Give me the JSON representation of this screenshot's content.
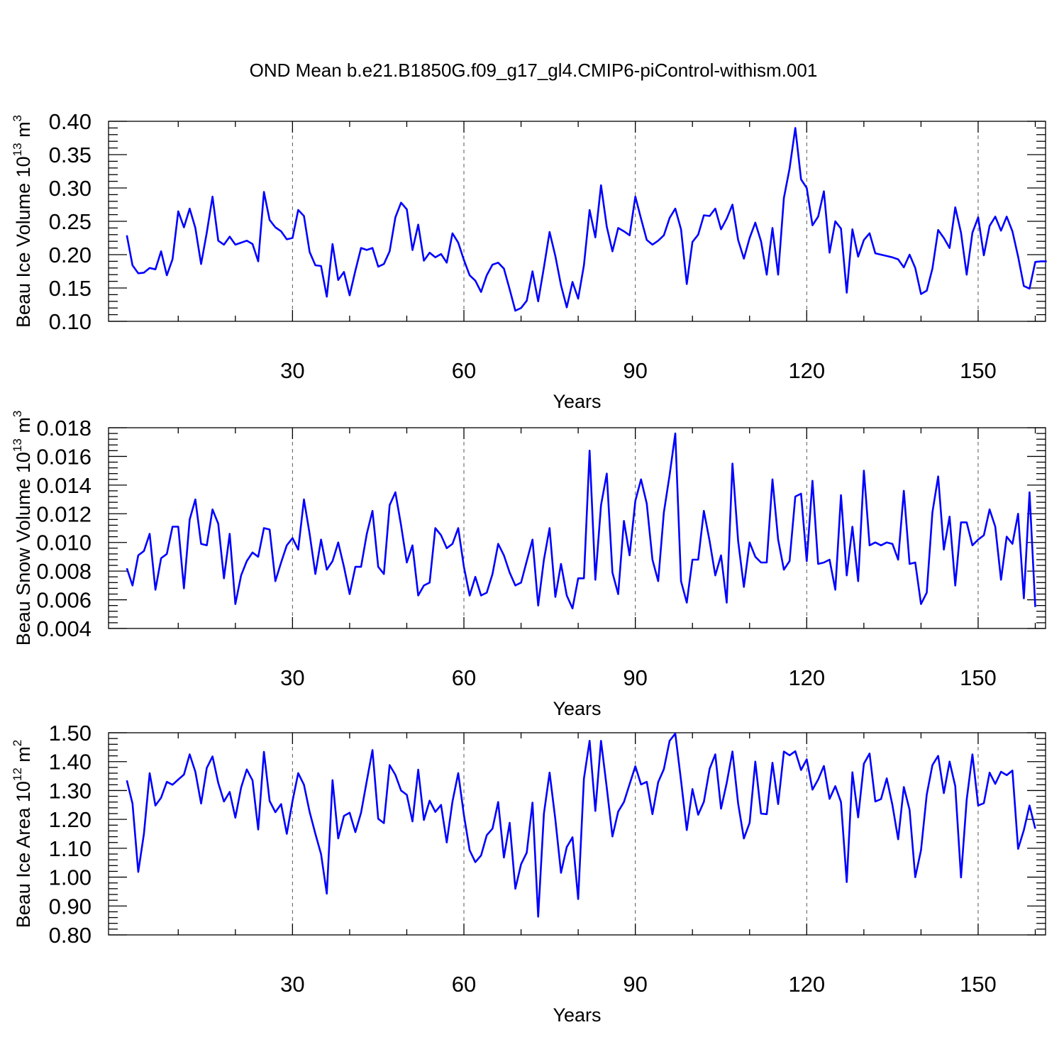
{
  "title": "OND Mean b.e21.B1850G.f09_g17_gl4.CMIP6-piControl-withism.001",
  "chart_data": [
    {
      "type": "line",
      "ylabel_main": "Beau Ice Volume 10",
      "ylabel_exp": "13",
      "ylabel_unit": " m",
      "ylabel_unit_exp": "3",
      "xlabel": "Years",
      "xlim": [
        1,
        160
      ],
      "ylim": [
        0.1,
        0.4
      ],
      "xticks": [
        30,
        60,
        90,
        120,
        150
      ],
      "yticks": [
        "0.10",
        "0.15",
        "0.20",
        "0.25",
        "0.30",
        "0.35",
        "0.40"
      ],
      "grid": "x dashed",
      "series": [
        {
          "name": "Beau Ice Volume",
          "color": "#0000ff",
          "values": [
            0.229,
            0.184,
            0.172,
            0.173,
            0.18,
            0.178,
            0.205,
            0.169,
            0.193,
            0.265,
            0.241,
            0.269,
            0.24,
            0.186,
            0.233,
            0.287,
            0.221,
            0.215,
            0.227,
            0.215,
            0.218,
            0.221,
            0.216,
            0.19,
            0.294,
            0.252,
            0.241,
            0.235,
            0.223,
            0.225,
            0.267,
            0.258,
            0.204,
            0.184,
            0.183,
            0.137,
            0.216,
            0.162,
            0.174,
            0.139,
            0.176,
            0.21,
            0.207,
            0.21,
            0.182,
            0.186,
            0.205,
            0.256,
            0.278,
            0.268,
            0.207,
            0.245,
            0.191,
            0.203,
            0.196,
            0.201,
            0.188,
            0.232,
            0.218,
            0.192,
            0.169,
            0.161,
            0.144,
            0.169,
            0.185,
            0.188,
            0.179,
            0.148,
            0.116,
            0.12,
            0.131,
            0.175,
            0.13,
            0.181,
            0.234,
            0.198,
            0.154,
            0.121,
            0.159,
            0.134,
            0.184,
            0.267,
            0.226,
            0.304,
            0.242,
            0.205,
            0.24,
            0.235,
            0.229,
            0.287,
            0.254,
            0.222,
            0.215,
            0.221,
            0.229,
            0.255,
            0.269,
            0.238,
            0.156,
            0.219,
            0.23,
            0.259,
            0.258,
            0.269,
            0.238,
            0.254,
            0.275,
            0.222,
            0.194,
            0.225,
            0.248,
            0.22,
            0.17,
            0.24,
            0.17,
            0.285,
            0.329,
            0.39,
            0.313,
            0.3,
            0.244,
            0.257,
            0.295,
            0.203,
            0.25,
            0.239,
            0.143,
            0.238,
            0.197,
            0.222,
            0.232,
            0.202,
            0.2,
            0.198,
            0.196,
            0.193,
            0.181,
            0.2,
            0.18,
            0.141,
            0.146,
            0.179,
            0.237,
            0.225,
            0.21,
            0.271,
            0.233,
            0.17,
            0.233,
            0.256,
            0.199,
            0.243,
            0.257,
            0.236,
            0.257,
            0.235,
            0.197,
            0.153,
            0.149,
            0.189,
            0.19,
            0.19
          ]
        }
      ]
    },
    {
      "type": "line",
      "ylabel_main": "Beau Snow Volume 10",
      "ylabel_exp": "13",
      "ylabel_unit": " m",
      "ylabel_unit_exp": "3",
      "xlabel": "Years",
      "xlim": [
        1,
        160
      ],
      "ylim": [
        0.004,
        0.018
      ],
      "xticks": [
        30,
        60,
        90,
        120,
        150
      ],
      "yticks": [
        "0.004",
        "0.006",
        "0.008",
        "0.010",
        "0.012",
        "0.014",
        "0.016",
        "0.018"
      ],
      "grid": "x dashed",
      "series": [
        {
          "name": "Beau Snow Volume",
          "color": "#0000ff",
          "values": [
            0.0082,
            0.007,
            0.0091,
            0.0094,
            0.0106,
            0.0067,
            0.0089,
            0.0092,
            0.0111,
            0.0111,
            0.0068,
            0.0116,
            0.013,
            0.0099,
            0.0098,
            0.0123,
            0.0113,
            0.0075,
            0.0106,
            0.0057,
            0.0077,
            0.0087,
            0.0093,
            0.009,
            0.011,
            0.0109,
            0.0073,
            0.0086,
            0.0098,
            0.0103,
            0.0095,
            0.013,
            0.0106,
            0.0078,
            0.0102,
            0.0081,
            0.0087,
            0.01,
            0.0083,
            0.0064,
            0.0083,
            0.0083,
            0.0106,
            0.0122,
            0.0083,
            0.0078,
            0.0126,
            0.0135,
            0.0112,
            0.0086,
            0.0098,
            0.0063,
            0.007,
            0.0072,
            0.011,
            0.0105,
            0.0096,
            0.0099,
            0.011,
            0.0083,
            0.0063,
            0.0076,
            0.0063,
            0.0065,
            0.0078,
            0.0099,
            0.0091,
            0.0079,
            0.007,
            0.0072,
            0.0087,
            0.0102,
            0.0056,
            0.0088,
            0.011,
            0.0062,
            0.0085,
            0.0063,
            0.0054,
            0.0075,
            0.0075,
            0.0164,
            0.0074,
            0.0126,
            0.0148,
            0.0079,
            0.0064,
            0.0115,
            0.0091,
            0.0129,
            0.0144,
            0.0127,
            0.0088,
            0.0073,
            0.0121,
            0.0147,
            0.0176,
            0.0073,
            0.0058,
            0.0088,
            0.0088,
            0.0122,
            0.0101,
            0.0077,
            0.0091,
            0.0058,
            0.0155,
            0.0101,
            0.0069,
            0.01,
            0.009,
            0.0086,
            0.0086,
            0.0144,
            0.0102,
            0.0081,
            0.0087,
            0.0132,
            0.0134,
            0.0087,
            0.0143,
            0.0085,
            0.0086,
            0.0088,
            0.0067,
            0.0133,
            0.0077,
            0.0111,
            0.0073,
            0.015,
            0.0098,
            0.01,
            0.0098,
            0.01,
            0.0099,
            0.0088,
            0.0136,
            0.0085,
            0.0086,
            0.0057,
            0.0065,
            0.0121,
            0.0146,
            0.0095,
            0.0118,
            0.007,
            0.0114,
            0.0114,
            0.0098,
            0.0102,
            0.0105,
            0.0123,
            0.0111,
            0.0074,
            0.0104,
            0.0099,
            0.012,
            0.0061,
            0.0135,
            0.0055
          ]
        }
      ]
    },
    {
      "type": "line",
      "ylabel_main": "Beau Ice Area 10",
      "ylabel_exp": "12",
      "ylabel_unit": " m",
      "ylabel_unit_exp": "2",
      "xlabel": "Years",
      "xlim": [
        1,
        160
      ],
      "ylim": [
        0.8,
        1.5
      ],
      "xticks": [
        30,
        60,
        90,
        120,
        150
      ],
      "yticks": [
        "0.80",
        "0.90",
        "1.00",
        "1.10",
        "1.20",
        "1.30",
        "1.40",
        "1.50"
      ],
      "grid": "x dashed",
      "series": [
        {
          "name": "Beau Ice Area",
          "color": "#0000ff",
          "values": [
            1.335,
            1.255,
            1.018,
            1.15,
            1.36,
            1.248,
            1.275,
            1.33,
            1.32,
            1.338,
            1.355,
            1.425,
            1.365,
            1.255,
            1.378,
            1.418,
            1.326,
            1.262,
            1.295,
            1.206,
            1.31,
            1.373,
            1.335,
            1.165,
            1.434,
            1.264,
            1.225,
            1.253,
            1.15,
            1.264,
            1.36,
            1.32,
            1.226,
            1.15,
            1.08,
            0.943,
            1.336,
            1.134,
            1.212,
            1.223,
            1.156,
            1.223,
            1.333,
            1.44,
            1.202,
            1.187,
            1.388,
            1.354,
            1.3,
            1.285,
            1.193,
            1.372,
            1.198,
            1.265,
            1.226,
            1.25,
            1.12,
            1.262,
            1.36,
            1.215,
            1.093,
            1.052,
            1.075,
            1.145,
            1.168,
            1.26,
            1.068,
            1.188,
            0.96,
            1.045,
            1.085,
            1.258,
            0.863,
            1.22,
            1.362,
            1.2,
            1.015,
            1.104,
            1.138,
            0.924,
            1.341,
            1.472,
            1.229,
            1.472,
            1.31,
            1.141,
            1.227,
            1.26,
            1.322,
            1.384,
            1.321,
            1.33,
            1.218,
            1.329,
            1.374,
            1.472,
            1.497,
            1.335,
            1.163,
            1.305,
            1.216,
            1.261,
            1.375,
            1.425,
            1.237,
            1.326,
            1.435,
            1.255,
            1.134,
            1.188,
            1.4,
            1.22,
            1.218,
            1.396,
            1.253,
            1.435,
            1.422,
            1.436,
            1.371,
            1.408,
            1.303,
            1.338,
            1.385,
            1.271,
            1.315,
            1.26,
            0.983,
            1.363,
            1.207,
            1.393,
            1.428,
            1.262,
            1.27,
            1.342,
            1.25,
            1.131,
            1.312,
            1.233,
            1.0,
            1.093,
            1.286,
            1.388,
            1.42,
            1.291,
            1.4,
            1.315,
            0.999,
            1.268,
            1.425,
            1.248,
            1.256,
            1.362,
            1.323,
            1.365,
            1.353,
            1.369,
            1.098,
            1.163,
            1.248,
            1.168
          ]
        }
      ]
    }
  ]
}
